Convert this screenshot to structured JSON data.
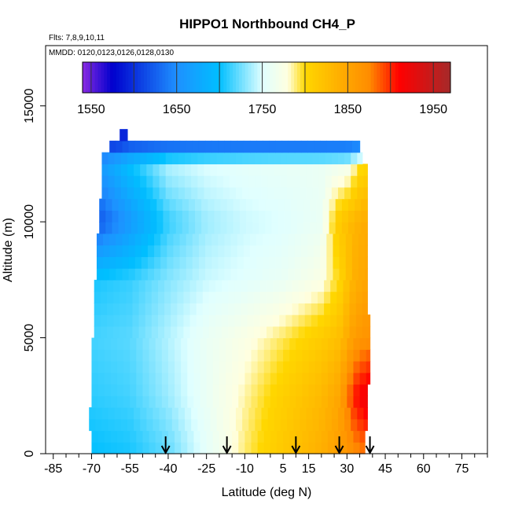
{
  "chart_data": {
    "type": "heatmap",
    "title": "HIPPO1 Northbound CH4_P",
    "flights_label": "Flts: 7,8,9,10,11",
    "mmdd_label": "MMDD: 0120,0123,0126,0128,0130",
    "xlabel": "Latitude (deg N)",
    "ylabel": "Altitude (m)",
    "xlim": [
      -88,
      85
    ],
    "ylim": [
      0,
      17600
    ],
    "x_ticks": [
      -85,
      -70,
      -55,
      -40,
      -25,
      -10,
      5,
      15,
      30,
      45,
      60,
      75
    ],
    "y_ticks": [
      0,
      5000,
      10000,
      15000
    ],
    "color_scale": {
      "min": 1540,
      "max": 1970,
      "tick_values": [
        1550,
        1650,
        1750,
        1850,
        1950
      ],
      "bin_edges": [
        1550,
        1600,
        1650,
        1700,
        1750,
        1800,
        1850,
        1900,
        1950
      ],
      "stops": [
        {
          "value": 1540,
          "color": "#8a2be2"
        },
        {
          "value": 1575,
          "color": "#0000cd"
        },
        {
          "value": 1650,
          "color": "#1e90ff"
        },
        {
          "value": 1700,
          "color": "#00bfff"
        },
        {
          "value": 1750,
          "color": "#e0ffff"
        },
        {
          "value": 1780,
          "color": "#ffffe0"
        },
        {
          "value": 1800,
          "color": "#ffd700"
        },
        {
          "value": 1850,
          "color": "#ffa500"
        },
        {
          "value": 1875,
          "color": "#ff8c00"
        },
        {
          "value": 1910,
          "color": "#ff0000"
        },
        {
          "value": 1970,
          "color": "#a52a2a"
        }
      ]
    },
    "arrow_latitudes": [
      -41,
      -17,
      10,
      27,
      39
    ],
    "field": {
      "altitude_bins": [
        {
          "alt": 0,
          "south": -70,
          "north": 37
        },
        {
          "alt": 500,
          "south": -70,
          "north": 37
        },
        {
          "alt": 1000,
          "south": -71,
          "north": 38
        },
        {
          "alt": 1500,
          "south": -71,
          "north": 38
        },
        {
          "alt": 2000,
          "south": -70,
          "north": 38
        },
        {
          "alt": 2500,
          "south": -70,
          "north": 38
        },
        {
          "alt": 3000,
          "south": -70,
          "north": 39
        },
        {
          "alt": 3500,
          "south": -70,
          "north": 39
        },
        {
          "alt": 4000,
          "south": -70,
          "north": 39
        },
        {
          "alt": 4500,
          "south": -70,
          "north": 39
        },
        {
          "alt": 5000,
          "south": -69,
          "north": 39
        },
        {
          "alt": 5500,
          "south": -69,
          "north": 39
        },
        {
          "alt": 6000,
          "south": -69,
          "north": 38
        },
        {
          "alt": 6500,
          "south": -69,
          "north": 38
        },
        {
          "alt": 7000,
          "south": -69,
          "north": 38
        },
        {
          "alt": 7500,
          "south": -68,
          "north": 38
        },
        {
          "alt": 8000,
          "south": -68,
          "north": 38
        },
        {
          "alt": 8500,
          "south": -68,
          "north": 38
        },
        {
          "alt": 9000,
          "south": -68,
          "north": 38
        },
        {
          "alt": 9500,
          "south": -67,
          "north": 38
        },
        {
          "alt": 10000,
          "south": -67,
          "north": 38
        },
        {
          "alt": 10500,
          "south": -67,
          "north": 38
        },
        {
          "alt": 11000,
          "south": -66,
          "north": 38
        },
        {
          "alt": 11500,
          "south": -66,
          "north": 38
        },
        {
          "alt": 12000,
          "south": -66,
          "north": 38
        },
        {
          "alt": 12500,
          "south": -66,
          "north": 36
        },
        {
          "alt": 13000,
          "south": -63,
          "north": 35
        },
        {
          "alt": 13500,
          "south": -59,
          "north": -56
        }
      ],
      "profiles": [
        {
          "alt": 0,
          "points": [
            [
              -70,
              1700
            ],
            [
              -55,
              1705
            ],
            [
              -40,
              1722
            ],
            [
              -25,
              1755
            ],
            [
              -10,
              1790
            ],
            [
              5,
              1815
            ],
            [
              20,
              1840
            ],
            [
              30,
              1865
            ],
            [
              37,
              1880
            ]
          ]
        },
        {
          "alt": 2500,
          "points": [
            [
              -70,
              1710
            ],
            [
              -55,
              1715
            ],
            [
              -40,
              1735
            ],
            [
              -25,
              1760
            ],
            [
              -10,
              1785
            ],
            [
              5,
              1808
            ],
            [
              20,
              1830
            ],
            [
              27,
              1850
            ],
            [
              33,
              1905
            ],
            [
              38,
              1925
            ]
          ]
        },
        {
          "alt": 5000,
          "points": [
            [
              -70,
              1715
            ],
            [
              -55,
              1720
            ],
            [
              -40,
              1740
            ],
            [
              -25,
              1760
            ],
            [
              -10,
              1775
            ],
            [
              5,
              1792
            ],
            [
              20,
              1812
            ],
            [
              27,
              1825
            ],
            [
              33,
              1860
            ],
            [
              39,
              1870
            ]
          ]
        },
        {
          "alt": 7500,
          "points": [
            [
              -70,
              1705
            ],
            [
              -55,
              1712
            ],
            [
              -40,
              1730
            ],
            [
              -25,
              1745
            ],
            [
              -10,
              1752
            ],
            [
              5,
              1760
            ],
            [
              20,
              1775
            ],
            [
              27,
              1800
            ],
            [
              33,
              1840
            ],
            [
              38,
              1850
            ]
          ]
        },
        {
          "alt": 10000,
          "points": [
            [
              -70,
              1610
            ],
            [
              -55,
              1660
            ],
            [
              -40,
              1712
            ],
            [
              -25,
              1735
            ],
            [
              -10,
              1745
            ],
            [
              5,
              1750
            ],
            [
              20,
              1760
            ],
            [
              26,
              1810
            ],
            [
              33,
              1835
            ],
            [
              38,
              1845
            ]
          ]
        },
        {
          "alt": 12500,
          "points": [
            [
              -70,
              1650
            ],
            [
              -55,
              1700
            ],
            [
              -40,
              1740
            ],
            [
              -25,
              1750
            ],
            [
              -10,
              1755
            ],
            [
              5,
              1758
            ],
            [
              20,
              1760
            ],
            [
              30,
              1765
            ],
            [
              36,
              1800
            ]
          ]
        },
        {
          "alt": 13500,
          "points": [
            [
              -60,
              1590
            ],
            [
              -55,
              1600
            ]
          ]
        }
      ]
    }
  }
}
